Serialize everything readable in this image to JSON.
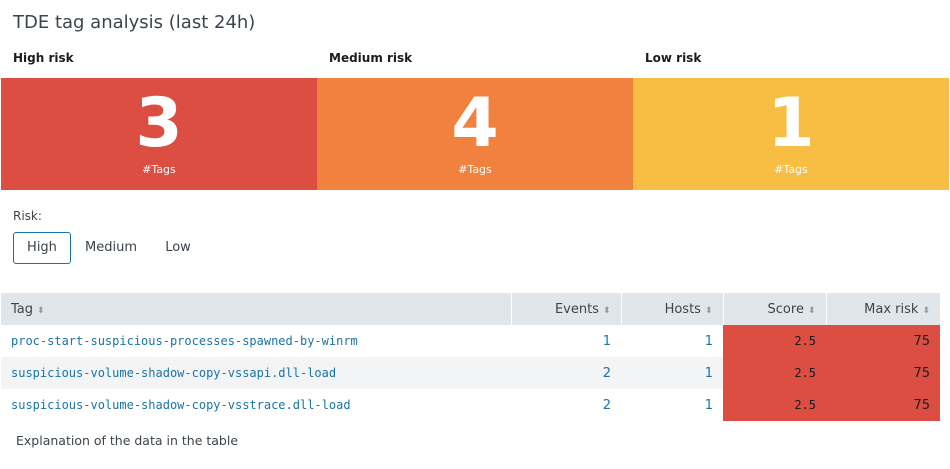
{
  "title": "TDE tag analysis (last 24h)",
  "panels": [
    {
      "label": "High risk",
      "value": "3",
      "unit": "#Tags",
      "color": "#dc4e41"
    },
    {
      "label": "Medium risk",
      "value": "4",
      "unit": "#Tags",
      "color": "#f1813f"
    },
    {
      "label": "Low risk",
      "value": "1",
      "unit": "#Tags",
      "color": "#f8be44"
    }
  ],
  "filter": {
    "label": "Risk:",
    "options": [
      "High",
      "Medium",
      "Low"
    ],
    "selected": "High"
  },
  "table": {
    "columns": [
      "Tag",
      "Events",
      "Hosts",
      "Score",
      "Max risk"
    ],
    "sort_icon": "sort-icon",
    "rows": [
      [
        "proc-start-suspicious-processes-spawned-by-winrm",
        "1",
        "1",
        "2.5",
        "75"
      ],
      [
        "suspicious-volume-shadow-copy-vssapi.dll-load",
        "2",
        "1",
        "2.5",
        "75"
      ],
      [
        "suspicious-volume-shadow-copy-vsstrace.dll-load",
        "2",
        "1",
        "2.5",
        "75"
      ]
    ]
  },
  "explanation": "Explanation of the data in the table"
}
